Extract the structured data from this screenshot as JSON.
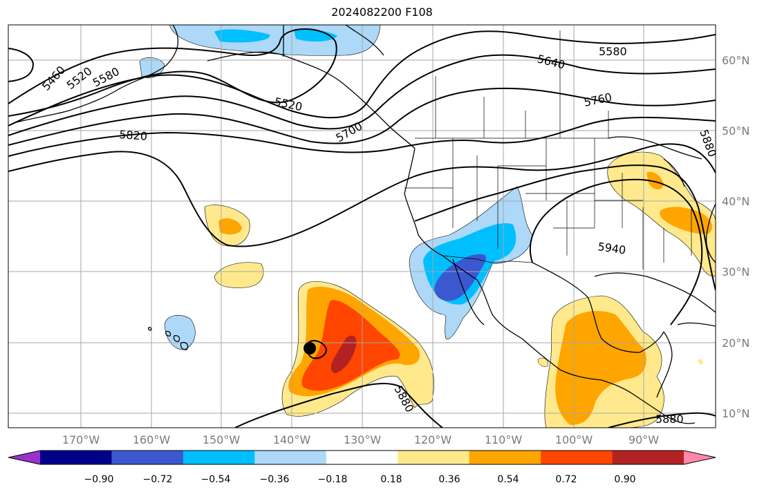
{
  "title": "2024082200 F108",
  "map": {
    "lat_labels": [
      "60°N",
      "50°N",
      "40°N",
      "30°N",
      "20°N",
      "10°N"
    ],
    "lon_labels": [
      "170°W",
      "160°W",
      "150°W",
      "140°W",
      "130°W",
      "120°W",
      "110°W",
      "100°W",
      "90°W"
    ],
    "contour_labels": [
      "5460",
      "5520",
      "5580",
      "5520",
      "5640",
      "5580",
      "5700",
      "5760",
      "5820",
      "5880",
      "5940",
      "5880",
      "5880"
    ],
    "grid_color": "#a6a6a6",
    "land_outline_color": "#000000"
  },
  "colorbar": {
    "ticks": [
      "−0.90",
      "−0.72",
      "−0.54",
      "−0.36",
      "−0.18",
      "0.18",
      "0.36",
      "0.54",
      "0.72",
      "0.90"
    ],
    "colors": [
      "#9932cc",
      "#00008b",
      "#3a58d0",
      "#00bfff",
      "#add8f7",
      "#ffffff",
      "#ffe98c",
      "#ffa500",
      "#ff4500",
      "#b22222",
      "#ff88aa"
    ]
  },
  "marker": "storm-center-dot"
}
